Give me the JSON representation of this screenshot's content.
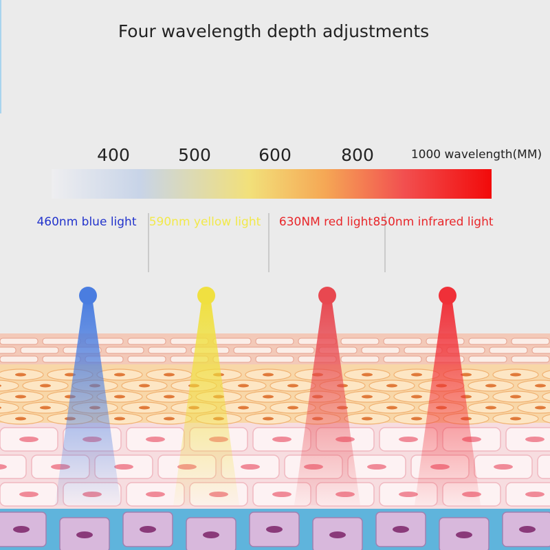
{
  "title": "Four wavelength depth adjustments",
  "scale": {
    "labels": [
      "400",
      "500",
      "600",
      "800",
      "1000 wavelength(MM)"
    ]
  },
  "lights": [
    {
      "label": "460nm blue light",
      "color": "#2233cc",
      "beam": "#4a7de0"
    },
    {
      "label": "590nm yellow light",
      "color": "#f2e94a",
      "beam": "#f0e040"
    },
    {
      "label": "630NM red light",
      "color": "#e8262a",
      "beam": "#e84850"
    },
    {
      "label": "850nm infrared light",
      "color": "#e8262a",
      "beam": "#f03038"
    }
  ]
}
